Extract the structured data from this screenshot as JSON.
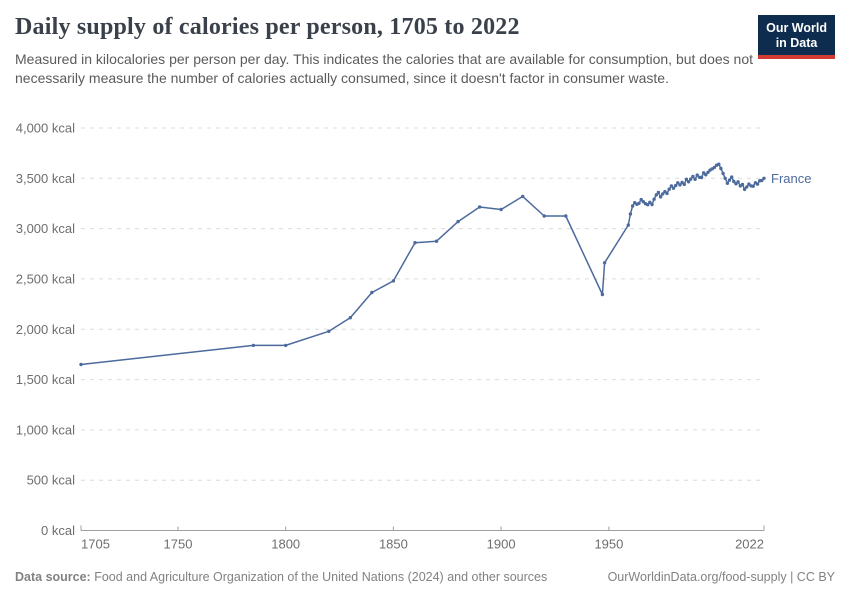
{
  "header": {
    "title": "Daily supply of calories per person, 1705 to 2022",
    "subtitle": "Measured in kilocalories per person per day. This indicates the calories that are available for consumption, but does not necessarily measure the number of calories actually consumed, since it doesn't factor in consumer waste.",
    "logo": {
      "line1": "Our World",
      "line2": "in Data",
      "bg_color": "#0e2c4e",
      "accent_color": "#d23b31"
    }
  },
  "footer": {
    "source_label": "Data source:",
    "source_text": " Food and Agriculture Organization of the United Nations (2024) and other sources",
    "link_text": "OurWorldinData.org/food-supply | CC BY"
  },
  "chart_data": {
    "type": "line",
    "title": "Daily supply of calories per person, 1705 to 2022",
    "xlabel": "",
    "ylabel": "",
    "xlim": [
      1705,
      2022
    ],
    "ylim": [
      0,
      4000
    ],
    "grid": "horizontal-dashed",
    "legend_position": "end-of-line-label",
    "x_ticks": [
      1705,
      1750,
      1800,
      1850,
      1900,
      1950,
      2022
    ],
    "x_tick_labels": [
      "1705",
      "1750",
      "1800",
      "1850",
      "1900",
      "1950",
      "2022"
    ],
    "y_ticks": [
      0,
      500,
      1000,
      1500,
      2000,
      2500,
      3000,
      3500,
      4000
    ],
    "y_tick_labels": [
      "0 kcal",
      "500 kcal",
      "1,000 kcal",
      "1,500 kcal",
      "2,000 kcal",
      "2,500 kcal",
      "3,000 kcal",
      "3,500 kcal",
      "4,000 kcal"
    ],
    "colors": {
      "line": "#4c6a9c",
      "gridline": "#dcdcdc",
      "axis": "#a0a0a0",
      "tick_label": "#6e6e6e"
    },
    "series": [
      {
        "name": "France",
        "color": "#4c6a9c",
        "points": [
          [
            1705,
            1650
          ],
          [
            1785,
            1840
          ],
          [
            1800,
            1840
          ],
          [
            1820,
            1980
          ],
          [
            1830,
            2115
          ],
          [
            1840,
            2365
          ],
          [
            1850,
            2480
          ],
          [
            1860,
            2860
          ],
          [
            1870,
            2875
          ],
          [
            1880,
            3070
          ],
          [
            1890,
            3215
          ],
          [
            1900,
            3190
          ],
          [
            1910,
            3320
          ],
          [
            1920,
            3125
          ],
          [
            1930,
            3125
          ],
          [
            1947,
            2345
          ],
          [
            1948,
            2660
          ],
          [
            1959,
            3035
          ],
          [
            1960,
            3145
          ],
          [
            1961,
            3225
          ],
          [
            1962,
            3258
          ],
          [
            1963,
            3242
          ],
          [
            1964,
            3252
          ],
          [
            1965,
            3288
          ],
          [
            1966,
            3268
          ],
          [
            1967,
            3248
          ],
          [
            1968,
            3238
          ],
          [
            1969,
            3262
          ],
          [
            1970,
            3240
          ],
          [
            1971,
            3292
          ],
          [
            1972,
            3335
          ],
          [
            1973,
            3360
          ],
          [
            1974,
            3315
          ],
          [
            1975,
            3345
          ],
          [
            1976,
            3368
          ],
          [
            1977,
            3350
          ],
          [
            1978,
            3392
          ],
          [
            1979,
            3425
          ],
          [
            1980,
            3402
          ],
          [
            1981,
            3428
          ],
          [
            1982,
            3455
          ],
          [
            1983,
            3435
          ],
          [
            1984,
            3458
          ],
          [
            1985,
            3440
          ],
          [
            1986,
            3490
          ],
          [
            1987,
            3465
          ],
          [
            1988,
            3492
          ],
          [
            1989,
            3518
          ],
          [
            1990,
            3490
          ],
          [
            1991,
            3532
          ],
          [
            1992,
            3510
          ],
          [
            1993,
            3508
          ],
          [
            1994,
            3555
          ],
          [
            1995,
            3535
          ],
          [
            1996,
            3560
          ],
          [
            1997,
            3582
          ],
          [
            1998,
            3595
          ],
          [
            1999,
            3608
          ],
          [
            2000,
            3630
          ],
          [
            2001,
            3640
          ],
          [
            2002,
            3598
          ],
          [
            2003,
            3548
          ],
          [
            2004,
            3500
          ],
          [
            2005,
            3450
          ],
          [
            2006,
            3482
          ],
          [
            2007,
            3512
          ],
          [
            2008,
            3468
          ],
          [
            2009,
            3445
          ],
          [
            2010,
            3465
          ],
          [
            2011,
            3425
          ],
          [
            2012,
            3440
          ],
          [
            2013,
            3390
          ],
          [
            2014,
            3415
          ],
          [
            2015,
            3442
          ],
          [
            2016,
            3425
          ],
          [
            2017,
            3422
          ],
          [
            2018,
            3455
          ],
          [
            2019,
            3442
          ],
          [
            2020,
            3475
          ],
          [
            2021,
            3478
          ],
          [
            2022,
            3500
          ]
        ]
      }
    ]
  }
}
